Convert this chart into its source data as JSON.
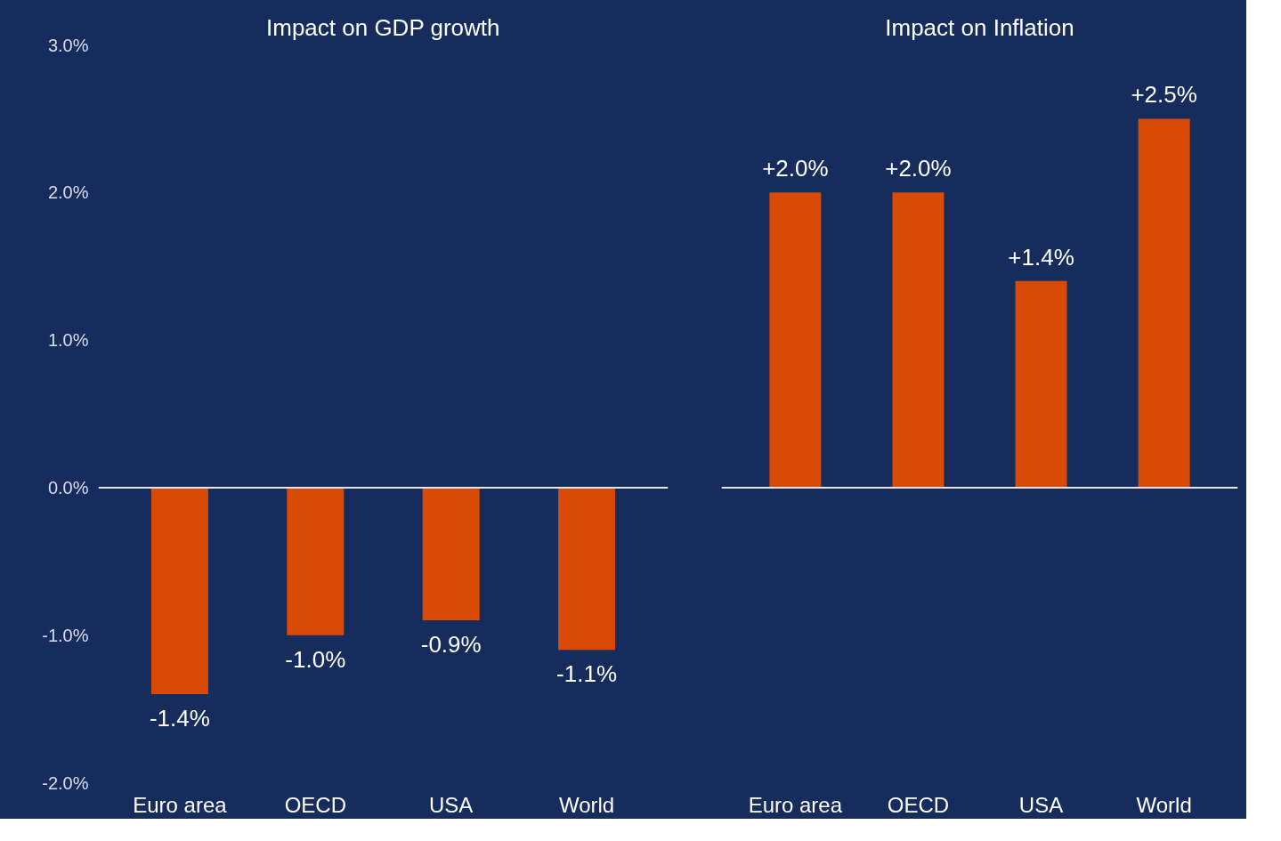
{
  "chart_data": [
    {
      "type": "bar",
      "title": "Impact on GDP growth",
      "categories": [
        "Euro area",
        "OECD",
        "USA",
        "World"
      ],
      "values": [
        -1.4,
        -1.0,
        -0.9,
        -1.1
      ],
      "color": "#d94a06",
      "value_labels": [
        "-1.4%",
        "-1.0%",
        "-0.9%",
        "-1.1%"
      ],
      "ylim": [
        -2.0,
        3.0
      ],
      "yticks": [
        {
          "value": -2,
          "label": "-2.0%"
        },
        {
          "value": -1,
          "label": "-1.0%"
        },
        {
          "value": 0,
          "label": "0.0%"
        },
        {
          "value": 1,
          "label": "1.0%"
        },
        {
          "value": 2,
          "label": "2.0%"
        },
        {
          "value": 3,
          "label": "3.0%"
        }
      ],
      "ref_lines": [
        {
          "axis": "y",
          "value": 0,
          "color": "#e6e6e6"
        }
      ],
      "grid": false
    },
    {
      "type": "bar",
      "title": "Impact on Inflation",
      "categories": [
        "Euro area",
        "OECD",
        "USA",
        "World"
      ],
      "values": [
        2.0,
        2.0,
        1.4,
        2.5
      ],
      "color": "#d94a06",
      "value_labels": [
        "+2.0%",
        "+2.0%",
        "+1.4%",
        "+2.5%"
      ],
      "ylim": [
        -2.0,
        3.0
      ],
      "ref_lines": [
        {
          "axis": "y",
          "value": 0,
          "color": "#e6e6e6"
        }
      ],
      "grid": false,
      "tick_labels": "x"
    }
  ]
}
